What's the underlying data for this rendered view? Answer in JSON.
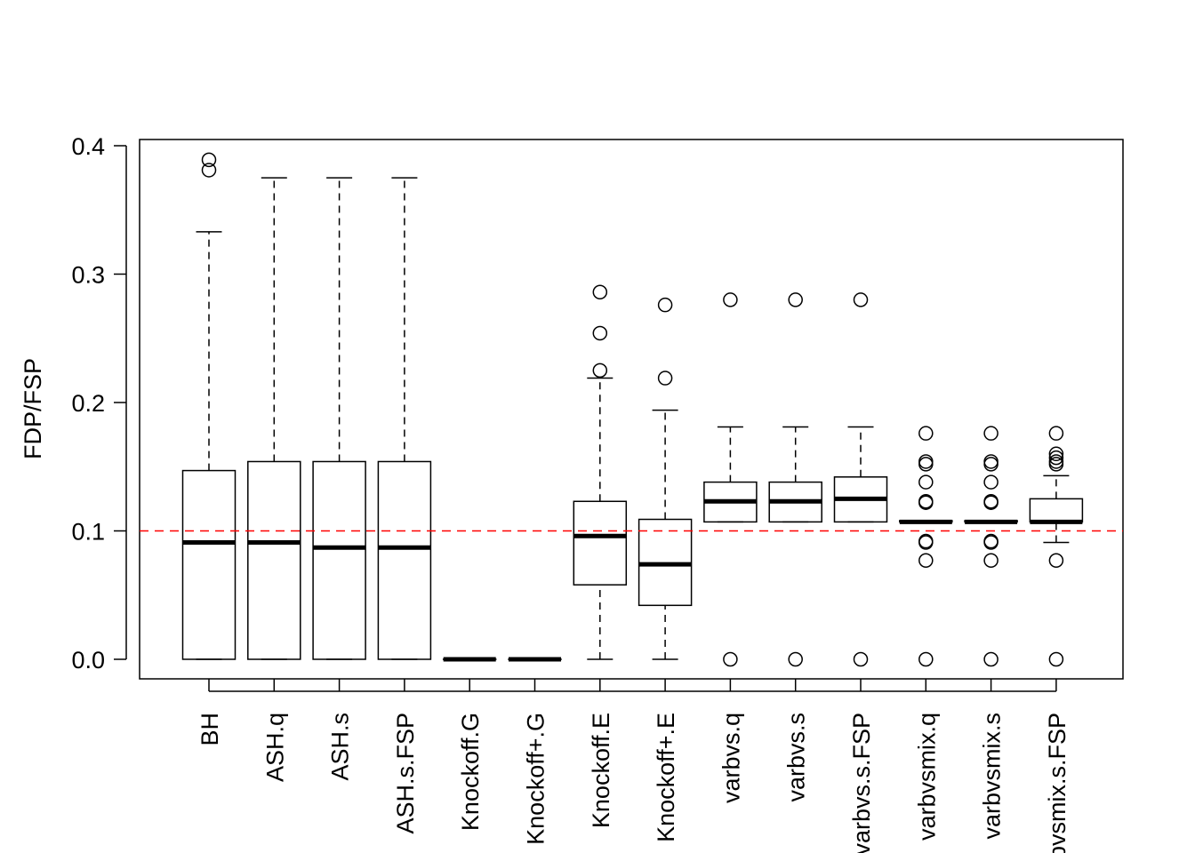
{
  "chart_data": {
    "type": "boxplot",
    "title": "",
    "xlabel": "",
    "ylabel": "FDP/FSP",
    "ylim": [
      -0.015,
      0.404
    ],
    "yticks": [
      0.0,
      0.1,
      0.2,
      0.3,
      0.4
    ],
    "ytick_labels": [
      "0.0",
      "0.1",
      "0.2",
      "0.3",
      "0.4"
    ],
    "reference_line": {
      "y": 0.1,
      "color": "#ff0000",
      "style": "dashed"
    },
    "categories": [
      "BH",
      "ASH.q",
      "ASH.s",
      "ASH.s.FSP",
      "Knockoff.G",
      "Knockoff+.G",
      "Knockoff.E",
      "Knockoff+.E",
      "varbvs.q",
      "varbvs.s",
      "varbvs.s.FSP",
      "varbvsmix.q",
      "varbvsmix.s",
      "varbvsmix.s.FSP"
    ],
    "boxes": [
      {
        "name": "BH",
        "whisker_low": 0.0,
        "q1": 0.0,
        "median": 0.091,
        "q3": 0.147,
        "whisker_high": 0.333,
        "outliers": [
          0.381,
          0.389
        ]
      },
      {
        "name": "ASH.q",
        "whisker_low": 0.0,
        "q1": 0.0,
        "median": 0.091,
        "q3": 0.154,
        "whisker_high": 0.375,
        "outliers": []
      },
      {
        "name": "ASH.s",
        "whisker_low": 0.0,
        "q1": 0.0,
        "median": 0.087,
        "q3": 0.154,
        "whisker_high": 0.375,
        "outliers": []
      },
      {
        "name": "ASH.s.FSP",
        "whisker_low": 0.0,
        "q1": 0.0,
        "median": 0.087,
        "q3": 0.154,
        "whisker_high": 0.375,
        "outliers": []
      },
      {
        "name": "Knockoff.G",
        "whisker_low": 0.0,
        "q1": 0.0,
        "median": 0.0,
        "q3": 0.0,
        "whisker_high": 0.0,
        "outliers": []
      },
      {
        "name": "Knockoff+.G",
        "whisker_low": 0.0,
        "q1": 0.0,
        "median": 0.0,
        "q3": 0.0,
        "whisker_high": 0.0,
        "outliers": []
      },
      {
        "name": "Knockoff.E",
        "whisker_low": 0.0,
        "q1": 0.058,
        "median": 0.096,
        "q3": 0.123,
        "whisker_high": 0.219,
        "outliers": [
          0.225,
          0.254,
          0.286
        ]
      },
      {
        "name": "Knockoff+.E",
        "whisker_low": 0.0,
        "q1": 0.042,
        "median": 0.074,
        "q3": 0.109,
        "whisker_high": 0.194,
        "outliers": [
          0.219,
          0.276
        ]
      },
      {
        "name": "varbvs.q",
        "whisker_low": 0.107,
        "q1": 0.107,
        "median": 0.123,
        "q3": 0.138,
        "whisker_high": 0.181,
        "outliers": [
          0.0,
          0.28
        ]
      },
      {
        "name": "varbvs.s",
        "whisker_low": 0.107,
        "q1": 0.107,
        "median": 0.123,
        "q3": 0.138,
        "whisker_high": 0.181,
        "outliers": [
          0.0,
          0.28
        ]
      },
      {
        "name": "varbvs.s.FSP",
        "whisker_low": 0.107,
        "q1": 0.107,
        "median": 0.125,
        "q3": 0.142,
        "whisker_high": 0.181,
        "outliers": [
          0.0,
          0.28
        ]
      },
      {
        "name": "varbvsmix.q",
        "whisker_low": 0.107,
        "q1": 0.107,
        "median": 0.107,
        "q3": 0.108,
        "whisker_high": 0.108,
        "outliers": [
          0.0,
          0.077,
          0.091,
          0.092,
          0.122,
          0.123,
          0.138,
          0.152,
          0.154,
          0.176
        ]
      },
      {
        "name": "varbvsmix.s",
        "whisker_low": 0.107,
        "q1": 0.107,
        "median": 0.107,
        "q3": 0.108,
        "whisker_high": 0.108,
        "outliers": [
          0.0,
          0.077,
          0.091,
          0.092,
          0.122,
          0.123,
          0.138,
          0.152,
          0.154,
          0.176
        ]
      },
      {
        "name": "varbvsmix.s.FSP",
        "whisker_low": 0.091,
        "q1": 0.107,
        "median": 0.107,
        "q3": 0.125,
        "whisker_high": 0.143,
        "outliers": [
          0.0,
          0.077,
          0.152,
          0.154,
          0.157,
          0.16,
          0.176
        ]
      }
    ],
    "grid": false,
    "legend": "none"
  }
}
